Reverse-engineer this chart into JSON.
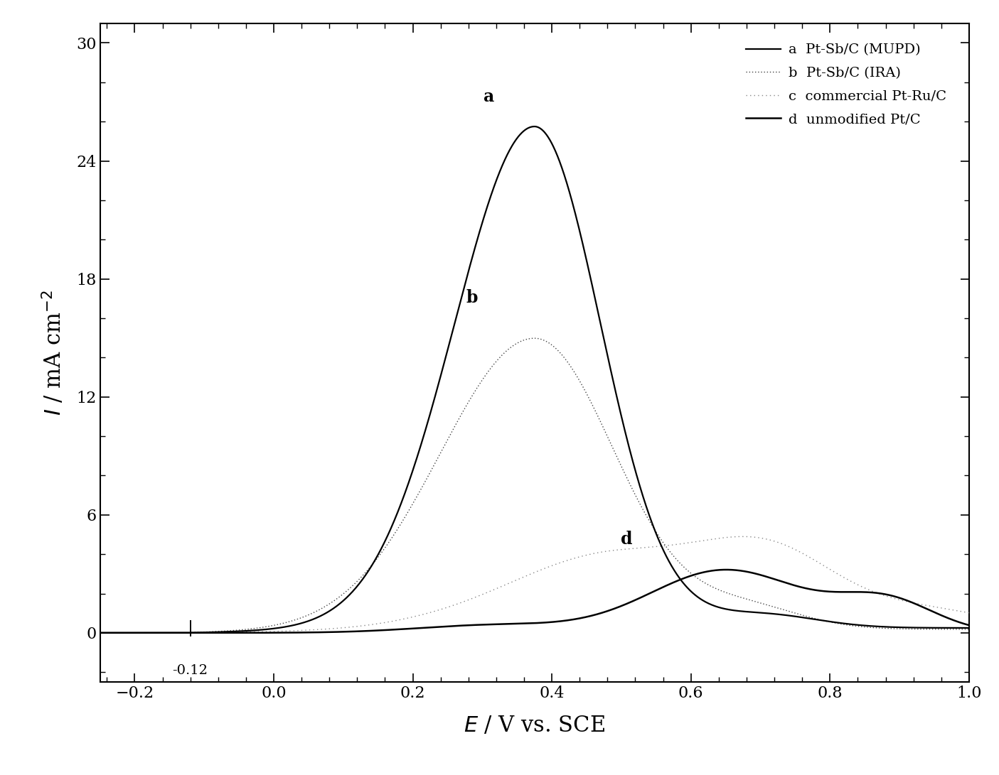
{
  "title": "",
  "xlabel": "$\\mathit{E}$ / V vs. SCE",
  "ylabel": "$\\mathit{I}$ / mA cm$^{-2}$",
  "xlim": [
    -0.25,
    1.0
  ],
  "ylim": [
    -2.5,
    31
  ],
  "yticks": [
    0,
    6,
    12,
    18,
    24,
    30
  ],
  "xticks": [
    -0.2,
    0.0,
    0.2,
    0.4,
    0.6,
    0.8,
    1.0
  ],
  "background_color": "#ffffff",
  "label_a": "a  Pt-Sb/C (MUPD)",
  "label_b": "b  Pt-Sb/C (IRA)",
  "label_c": "c  commercial Pt-Ru/C",
  "label_d": "d  unmodified Pt/C"
}
